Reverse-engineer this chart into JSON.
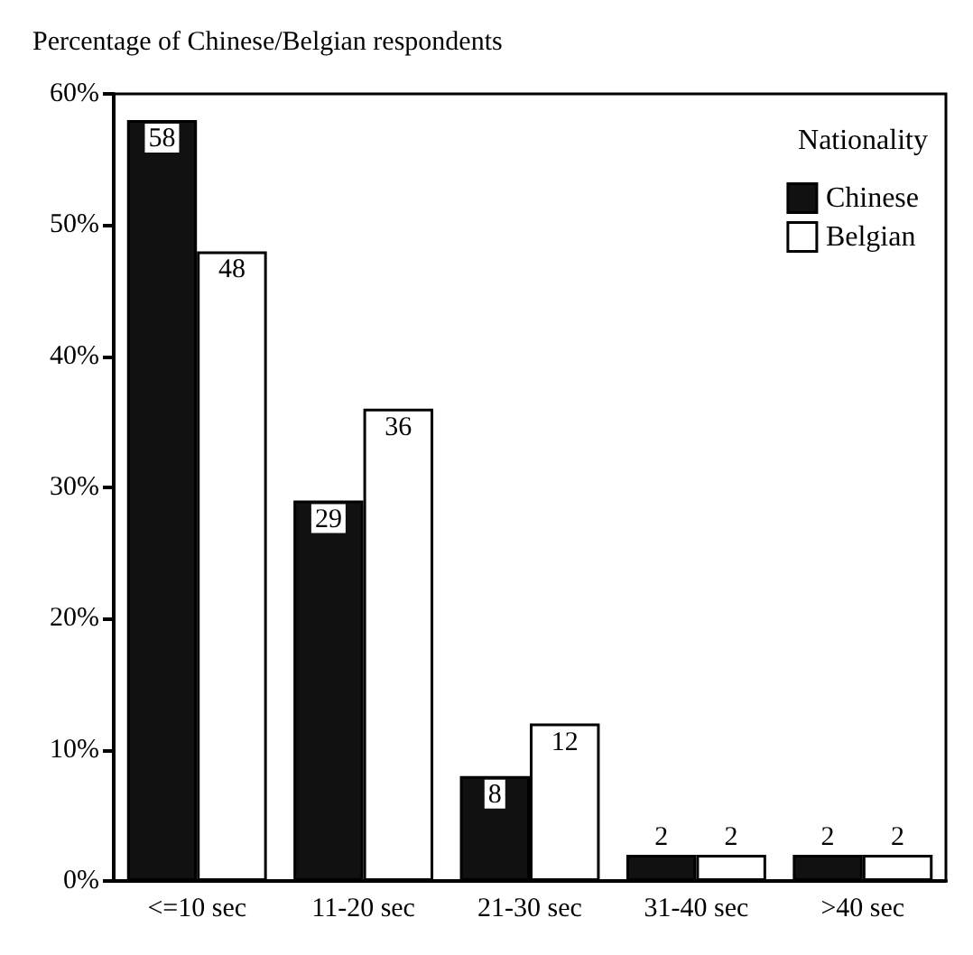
{
  "chart_data": {
    "type": "bar",
    "ylabel": "Percentage of Chinese/Belgian respondents",
    "legend_title": "Nationality",
    "categories": [
      "<=10 sec",
      "11-20 sec",
      "21-30 sec",
      "31-40 sec",
      ">40 sec"
    ],
    "series": [
      {
        "name": "Chinese",
        "color": "#111111",
        "values": [
          58,
          29,
          8,
          2,
          2
        ]
      },
      {
        "name": "Belgian",
        "color": "#ffffff",
        "values": [
          48,
          36,
          12,
          2,
          2
        ]
      }
    ],
    "ylim": [
      0,
      60
    ],
    "yticks": [
      {
        "value": 0,
        "label": "0%"
      },
      {
        "value": 10,
        "label": "10%"
      },
      {
        "value": 20,
        "label": "20%"
      },
      {
        "value": 30,
        "label": "30%"
      },
      {
        "value": 40,
        "label": "40%"
      },
      {
        "value": 50,
        "label": "50%"
      },
      {
        "value": 60,
        "label": "60%"
      }
    ],
    "data_labels": true,
    "grid": false,
    "legend": "top right"
  }
}
